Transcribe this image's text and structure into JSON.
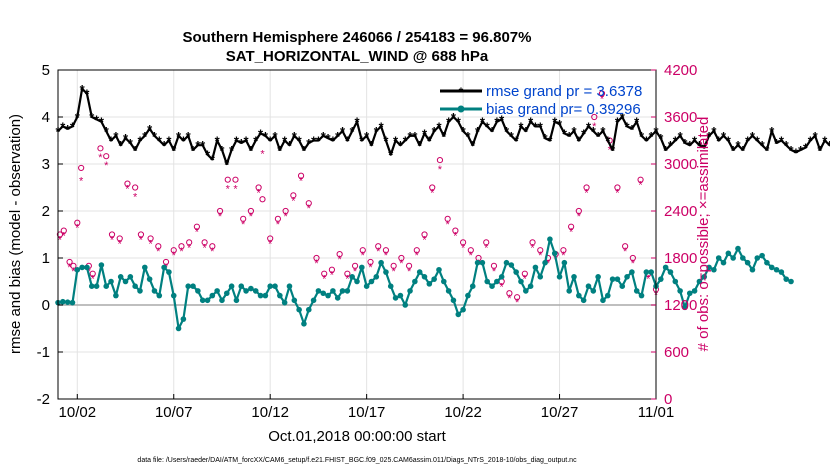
{
  "chart_data": {
    "type": "line",
    "title_line1": "Southern Hemisphere 246066 / 254183 = 96.807%",
    "title_line2": "SAT_HORIZONTAL_WIND @ 688 hPa",
    "xlabel": "Oct.01,2018 00:00:00 start",
    "ylabel": "rmse and bias (model - observation)",
    "ylabel_right": "# of obs: o=possible; ×=assimilated",
    "footer": "data file: /Users/raeder/DAI/ATM_forcXX/CAM6_setup/f.e21.FHIST_BGC.f09_025.CAM6assim.011/Diags_NTrS_2018-10/obs_diag_output.nc",
    "x_ticks": [
      "10/02",
      "10/07",
      "10/12",
      "10/17",
      "10/22",
      "10/27",
      "11/01"
    ],
    "x_tick_days": [
      2,
      7,
      12,
      17,
      22,
      27,
      32
    ],
    "xlim_days": [
      1,
      32
    ],
    "ylim": [
      -2,
      5
    ],
    "y_ticks": [
      "-2",
      "-1",
      "0",
      "1",
      "2",
      "3",
      "4",
      "5"
    ],
    "ylim_right": [
      0,
      4200
    ],
    "y_ticks_right": [
      "0",
      "600",
      "1200",
      "1800",
      "2400",
      "3000",
      "3600",
      "4200"
    ],
    "colors": {
      "rmse": "#000000",
      "bias": "#008080",
      "obs": "#cc0066",
      "zero_line": "#aaaaaa"
    },
    "series": [
      {
        "name": "rmse grand pr = 3.6378",
        "role": "rmse",
        "x_start_day": 1.0,
        "x_step_day": 0.25,
        "values": [
          3.7,
          3.8,
          3.75,
          3.8,
          4.0,
          4.6,
          4.5,
          4.0,
          3.95,
          3.9,
          3.7,
          3.5,
          3.6,
          3.4,
          3.55,
          3.45,
          3.3,
          3.5,
          3.6,
          3.75,
          3.6,
          3.5,
          3.4,
          3.5,
          3.3,
          3.6,
          3.5,
          3.6,
          3.3,
          3.4,
          3.4,
          3.2,
          3.1,
          3.5,
          3.3,
          3.0,
          3.3,
          3.5,
          3.45,
          3.5,
          3.3,
          3.5,
          3.65,
          3.6,
          3.5,
          3.6,
          3.3,
          3.5,
          3.4,
          3.6,
          3.5,
          3.3,
          3.45,
          3.5,
          3.5,
          3.6,
          3.55,
          3.5,
          3.6,
          3.7,
          3.5,
          3.7,
          3.9,
          3.5,
          3.6,
          3.4,
          3.7,
          3.8,
          3.5,
          3.2,
          3.5,
          3.4,
          3.5,
          3.6,
          3.6,
          3.4,
          3.65,
          3.5,
          3.7,
          3.8,
          3.6,
          3.9,
          4.0,
          3.9,
          3.7,
          3.6,
          3.4,
          3.7,
          3.9,
          3.8,
          3.7,
          3.9,
          3.95,
          3.7,
          3.6,
          3.5,
          3.8,
          3.7,
          3.9,
          3.8,
          3.8,
          3.55,
          3.5,
          3.9,
          3.85,
          3.65,
          3.6,
          3.7,
          3.5,
          3.65,
          3.8,
          3.7,
          3.6,
          3.7,
          3.5,
          3.3,
          3.9,
          4.0,
          3.8,
          3.75,
          3.9,
          3.6,
          3.5,
          3.6,
          3.7,
          3.55,
          3.3,
          3.4,
          3.5,
          3.6,
          3.45,
          3.4,
          3.5,
          3.4,
          3.35,
          3.6,
          3.7,
          3.5,
          3.6,
          3.5,
          3.3,
          3.4,
          3.3,
          3.5,
          3.6,
          3.5,
          3.4,
          3.3,
          3.7,
          3.45,
          3.5,
          3.4,
          3.3,
          3.25,
          3.3,
          3.35,
          3.5,
          3.6,
          3.3,
          3.5,
          3.4,
          3.6,
          3.7,
          3.5
        ]
      },
      {
        "name": "bias grand pr= 0.39296",
        "role": "bias",
        "x_start_day": 1.0,
        "x_step_day": 0.25,
        "values": [
          0.05,
          0.07,
          0.06,
          0.05,
          0.75,
          0.8,
          0.8,
          0.4,
          0.4,
          0.85,
          0.4,
          0.5,
          0.2,
          0.6,
          0.5,
          0.6,
          0.4,
          0.3,
          0.8,
          0.55,
          0.3,
          0.2,
          0.8,
          0.7,
          0.2,
          -0.5,
          -0.3,
          0.4,
          0.4,
          0.3,
          0.1,
          0.1,
          0.2,
          0.3,
          0.1,
          0.25,
          0.4,
          0.1,
          0.4,
          0.3,
          0.35,
          0.3,
          0.2,
          0.2,
          0.4,
          0.4,
          0.2,
          0.05,
          0.4,
          0.1,
          -0.1,
          -0.4,
          -0.1,
          0.1,
          0.3,
          0.25,
          0.2,
          0.3,
          0.15,
          0.3,
          0.3,
          0.6,
          0.5,
          0.8,
          0.4,
          0.5,
          0.6,
          0.9,
          0.7,
          0.4,
          0.15,
          0.2,
          0.0,
          0.3,
          0.5,
          0.7,
          0.6,
          0.45,
          0.55,
          0.75,
          0.5,
          0.3,
          0.1,
          -0.2,
          -0.1,
          0.2,
          0.4,
          0.9,
          0.9,
          0.5,
          0.4,
          0.5,
          0.6,
          0.9,
          0.85,
          0.7,
          0.5,
          0.3,
          0.4,
          0.8,
          0.6,
          0.9,
          1.4,
          1.1,
          0.6,
          0.9,
          0.3,
          0.6,
          0.2,
          0.1,
          0.4,
          0.3,
          0.6,
          0.1,
          0.2,
          0.55,
          0.55,
          0.4,
          0.6,
          0.7,
          0.3,
          0.2,
          0.7,
          0.7,
          0.4,
          0.55,
          0.8,
          0.7,
          0.5,
          0.3,
          -0.05,
          0.25,
          0.3,
          0.5,
          0.6,
          0.8,
          0.75,
          1.0,
          0.9,
          1.1,
          1.0,
          1.2,
          1.0,
          0.9,
          0.75,
          1.0,
          1.05,
          0.9,
          0.8,
          0.75,
          0.7,
          0.55,
          0.5
        ]
      }
    ],
    "obs_possible": [
      [
        1.1,
        2100
      ],
      [
        1.3,
        2150
      ],
      [
        1.6,
        1750
      ],
      [
        1.8,
        1700
      ],
      [
        2.0,
        2250
      ],
      [
        2.2,
        2950
      ],
      [
        2.6,
        1700
      ],
      [
        2.8,
        1600
      ],
      [
        3.2,
        3200
      ],
      [
        3.5,
        3100
      ],
      [
        3.8,
        2100
      ],
      [
        4.2,
        2050
      ],
      [
        4.6,
        2750
      ],
      [
        5.0,
        2700
      ],
      [
        5.3,
        2100
      ],
      [
        5.8,
        2050
      ],
      [
        6.2,
        1950
      ],
      [
        6.6,
        1750
      ],
      [
        7.0,
        1900
      ],
      [
        7.4,
        1950
      ],
      [
        7.8,
        2000
      ],
      [
        8.2,
        2200
      ],
      [
        8.6,
        2000
      ],
      [
        9.0,
        1950
      ],
      [
        9.4,
        2400
      ],
      [
        9.8,
        2800
      ],
      [
        10.2,
        2800
      ],
      [
        10.6,
        2300
      ],
      [
        11.0,
        2400
      ],
      [
        11.4,
        2700
      ],
      [
        11.6,
        2550
      ],
      [
        12.0,
        2050
      ],
      [
        12.4,
        2300
      ],
      [
        12.8,
        2400
      ],
      [
        13.2,
        2600
      ],
      [
        13.6,
        2850
      ],
      [
        14.0,
        2500
      ],
      [
        14.4,
        1800
      ],
      [
        14.8,
        1600
      ],
      [
        15.2,
        1650
      ],
      [
        15.6,
        1850
      ],
      [
        16.0,
        1600
      ],
      [
        16.4,
        1700
      ],
      [
        16.8,
        1900
      ],
      [
        17.2,
        1750
      ],
      [
        17.6,
        1950
      ],
      [
        18.0,
        1900
      ],
      [
        18.4,
        1700
      ],
      [
        18.8,
        1800
      ],
      [
        19.2,
        1700
      ],
      [
        19.6,
        1900
      ],
      [
        20.0,
        2100
      ],
      [
        20.4,
        2700
      ],
      [
        20.8,
        3050
      ],
      [
        21.2,
        2300
      ],
      [
        21.6,
        2150
      ],
      [
        22.0,
        2000
      ],
      [
        22.4,
        1900
      ],
      [
        22.8,
        1800
      ],
      [
        23.2,
        2000
      ],
      [
        23.6,
        1700
      ],
      [
        24.0,
        1500
      ],
      [
        24.4,
        1350
      ],
      [
        24.8,
        1300
      ],
      [
        25.2,
        1600
      ],
      [
        25.6,
        2000
      ],
      [
        26.0,
        1900
      ],
      [
        26.4,
        1800
      ],
      [
        26.8,
        1850
      ],
      [
        27.2,
        1900
      ],
      [
        27.6,
        2200
      ],
      [
        28.0,
        2400
      ],
      [
        28.4,
        2700
      ],
      [
        28.8,
        3600
      ],
      [
        29.2,
        3900
      ],
      [
        29.6,
        3300
      ],
      [
        30.0,
        2700
      ],
      [
        30.4,
        1950
      ],
      [
        30.8,
        1800
      ],
      [
        31.2,
        2800
      ],
      [
        31.6,
        1600
      ],
      [
        32.0,
        1400
      ]
    ],
    "obs_assimilated": [
      [
        1.1,
        2050
      ],
      [
        1.3,
        2100
      ],
      [
        1.6,
        1700
      ],
      [
        1.8,
        1650
      ],
      [
        2.0,
        2200
      ],
      [
        2.2,
        2800
      ],
      [
        2.6,
        1650
      ],
      [
        2.8,
        1550
      ],
      [
        3.2,
        3100
      ],
      [
        3.5,
        3000
      ],
      [
        3.8,
        2050
      ],
      [
        4.2,
        2000
      ],
      [
        4.6,
        2700
      ],
      [
        5.0,
        2600
      ],
      [
        5.3,
        2050
      ],
      [
        5.8,
        2000
      ],
      [
        6.2,
        1900
      ],
      [
        6.6,
        1700
      ],
      [
        7.0,
        1850
      ],
      [
        7.4,
        1900
      ],
      [
        7.8,
        1950
      ],
      [
        8.2,
        2150
      ],
      [
        8.6,
        1950
      ],
      [
        9.0,
        1900
      ],
      [
        9.4,
        2350
      ],
      [
        9.8,
        2700
      ],
      [
        10.2,
        2700
      ],
      [
        10.6,
        2250
      ],
      [
        11.0,
        2350
      ],
      [
        11.4,
        2650
      ],
      [
        11.6,
        3150
      ],
      [
        12.0,
        2000
      ],
      [
        12.4,
        2250
      ],
      [
        12.8,
        2350
      ],
      [
        13.2,
        2550
      ],
      [
        13.6,
        2800
      ],
      [
        14.0,
        2450
      ],
      [
        14.4,
        1750
      ],
      [
        14.8,
        1550
      ],
      [
        15.2,
        1600
      ],
      [
        15.6,
        1800
      ],
      [
        16.0,
        1550
      ],
      [
        16.4,
        1650
      ],
      [
        16.8,
        1850
      ],
      [
        17.2,
        1700
      ],
      [
        17.6,
        1900
      ],
      [
        18.0,
        1850
      ],
      [
        18.4,
        1650
      ],
      [
        18.8,
        1750
      ],
      [
        19.2,
        1650
      ],
      [
        19.6,
        1850
      ],
      [
        20.0,
        2050
      ],
      [
        20.4,
        2650
      ],
      [
        20.8,
        2950
      ],
      [
        21.2,
        2250
      ],
      [
        21.6,
        2100
      ],
      [
        22.0,
        1950
      ],
      [
        22.4,
        1850
      ],
      [
        22.8,
        1750
      ],
      [
        23.2,
        1950
      ],
      [
        23.6,
        1650
      ],
      [
        24.0,
        1450
      ],
      [
        24.4,
        1300
      ],
      [
        24.8,
        1250
      ],
      [
        25.2,
        1550
      ],
      [
        25.6,
        1950
      ],
      [
        26.0,
        1850
      ],
      [
        26.4,
        1750
      ],
      [
        26.8,
        1800
      ],
      [
        27.2,
        1850
      ],
      [
        27.6,
        2150
      ],
      [
        28.0,
        2350
      ],
      [
        28.4,
        2650
      ],
      [
        28.8,
        3500
      ],
      [
        29.2,
        3850
      ],
      [
        29.6,
        3200
      ],
      [
        30.0,
        2650
      ],
      [
        30.4,
        1900
      ],
      [
        30.8,
        1750
      ],
      [
        31.2,
        2750
      ],
      [
        31.6,
        1550
      ],
      [
        32.0,
        1350
      ]
    ],
    "legend_placement": "top-right",
    "grid": true
  }
}
